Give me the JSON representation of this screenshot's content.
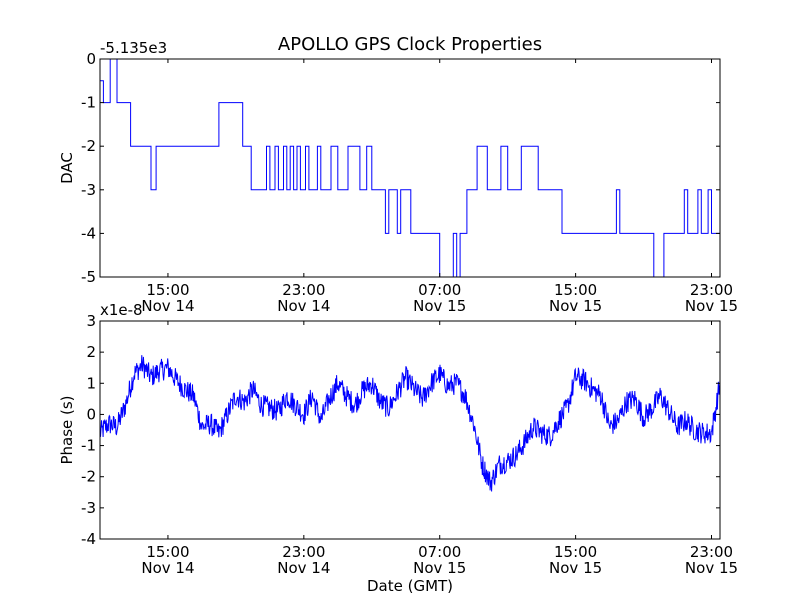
{
  "figure": {
    "title": "APOLLO GPS Clock Properties",
    "xlabel": "Date (GMT)"
  },
  "chart_data": [
    {
      "type": "line",
      "title": "APOLLO GPS Clock Properties",
      "ylabel": "DAC",
      "offset_label": "-5.135e3",
      "xlabel": "",
      "x_unit": "hours since 2012-11-14 11:00 GMT",
      "xlim": [
        0,
        36.5
      ],
      "ylim": [
        -5,
        0
      ],
      "yticks": [
        0,
        -1,
        -2,
        -3,
        -4,
        -5
      ],
      "xticks": [
        {
          "x": 4,
          "line1": "15:00",
          "line2": "Nov 14"
        },
        {
          "x": 12,
          "line1": "23:00",
          "line2": "Nov 14"
        },
        {
          "x": 20,
          "line1": "07:00",
          "line2": "Nov 15"
        },
        {
          "x": 28,
          "line1": "15:00",
          "line2": "Nov 15"
        },
        {
          "x": 36,
          "line1": "23:00",
          "line2": "Nov 15"
        }
      ],
      "grid": false,
      "line_color": "#0000ff",
      "series": [
        {
          "x": [
            0.0,
            0.2,
            0.4,
            0.6,
            0.8,
            1.0,
            1.2,
            1.8,
            2.6,
            3.0,
            3.1,
            3.3,
            3.8,
            4.5,
            6.8,
            7.0,
            8.4,
            8.6,
            8.9,
            9.6,
            9.8,
            10.0,
            10.3,
            10.5,
            10.8,
            11.0,
            11.2,
            11.4,
            11.6,
            11.8,
            12.1,
            12.3,
            12.6,
            12.8,
            13.0,
            13.4,
            13.6,
            14.0,
            14.4,
            14.6,
            15.0,
            15.3,
            15.5,
            15.7,
            16.0,
            16.2,
            16.5,
            16.8,
            17.0,
            17.2,
            17.5,
            17.7,
            18.0,
            18.3,
            18.6,
            18.9,
            19.3,
            19.6,
            20.0,
            20.6,
            20.8,
            21.0,
            21.2,
            21.4,
            21.6,
            22.0,
            22.2,
            22.6,
            22.8,
            23.0,
            23.2,
            23.6,
            24.0,
            24.4,
            24.6,
            24.8,
            25.4,
            25.8,
            26.2,
            26.6,
            27.2,
            28.0,
            29.0,
            30.0,
            30.4,
            30.6,
            31.0,
            31.2,
            31.4,
            32.2,
            32.4,
            32.6,
            33.2,
            34.0,
            34.4,
            34.6,
            35.0,
            35.2,
            35.4,
            35.8,
            36.0,
            36.2,
            36.5
          ],
          "y": [
            -0.5,
            -1,
            -1,
            0,
            0,
            -1,
            -1,
            -2,
            -2,
            -3,
            -3,
            -2,
            -2,
            -2,
            -2,
            -1,
            -2,
            -2,
            -3,
            -3,
            -2,
            -3,
            -2,
            -3,
            -2,
            -3,
            -2,
            -3,
            -2,
            -3,
            -2,
            -3,
            -3,
            -2,
            -3,
            -3,
            -2,
            -3,
            -3,
            -2,
            -2,
            -3,
            -3,
            -2,
            -3,
            -3,
            -3,
            -4,
            -3,
            -3,
            -4,
            -3,
            -3,
            -4,
            -4,
            -4,
            -4,
            -4,
            -5,
            -5,
            -4,
            -5,
            -4,
            -4,
            -3,
            -3,
            -2,
            -2,
            -3,
            -3,
            -3,
            -2,
            -3,
            -3,
            -3,
            -2,
            -2,
            -3,
            -3,
            -3,
            -4,
            -4,
            -4,
            -4,
            -3,
            -4,
            -4,
            -4,
            -4,
            -4,
            -4,
            -5,
            -4,
            -4,
            -3,
            -4,
            -4,
            -3,
            -4,
            -3,
            -4,
            -4,
            -4
          ]
        }
      ]
    },
    {
      "type": "line",
      "ylabel": "Phase (s)",
      "offset_label": "x1e-8",
      "xlabel": "Date (GMT)",
      "x_unit": "hours since 2012-11-14 11:00 GMT",
      "xlim": [
        0,
        36.5
      ],
      "ylim": [
        -4,
        3
      ],
      "yticks": [
        3,
        2,
        1,
        0,
        -1,
        -2,
        -3,
        -4
      ],
      "xticks": [
        {
          "x": 4,
          "line1": "15:00",
          "line2": "Nov 14"
        },
        {
          "x": 12,
          "line1": "23:00",
          "line2": "Nov 14"
        },
        {
          "x": 20,
          "line1": "07:00",
          "line2": "Nov 15"
        },
        {
          "x": 28,
          "line1": "15:00",
          "line2": "Nov 15"
        },
        {
          "x": 36,
          "line1": "23:00",
          "line2": "Nov 15"
        }
      ],
      "grid": false,
      "line_color": "#0000ff",
      "series": [
        {
          "x": [
            0,
            0.5,
            1.0,
            1.5,
            2.0,
            2.5,
            3.0,
            3.5,
            4.0,
            4.5,
            5.0,
            5.5,
            6.0,
            6.5,
            7.0,
            7.5,
            8.0,
            8.5,
            9.0,
            9.5,
            10.0,
            10.5,
            11.0,
            11.5,
            12.0,
            12.5,
            13.0,
            13.5,
            14.0,
            14.5,
            15.0,
            15.5,
            16.0,
            16.5,
            17.0,
            17.5,
            18.0,
            18.5,
            19.0,
            19.5,
            20.0,
            20.5,
            21.0,
            21.5,
            22.0,
            22.5,
            23.0,
            23.5,
            24.0,
            24.5,
            25.0,
            25.5,
            26.0,
            26.5,
            27.0,
            27.5,
            28.0,
            28.5,
            29.0,
            29.5,
            30.0,
            30.5,
            31.0,
            31.5,
            32.0,
            32.5,
            33.0,
            33.5,
            34.0,
            34.5,
            35.0,
            35.5,
            36.0,
            36.5
          ],
          "y": [
            -0.6,
            -0.3,
            -0.4,
            0.3,
            1.3,
            1.6,
            1.2,
            1.4,
            1.5,
            1.1,
            0.8,
            0.6,
            -0.4,
            -0.3,
            -0.6,
            0.0,
            0.6,
            0.4,
            0.8,
            0.3,
            0.2,
            0.1,
            0.6,
            0.3,
            0.0,
            0.6,
            -0.2,
            0.5,
            1.0,
            0.6,
            0.3,
            0.8,
            1.0,
            0.4,
            0.2,
            0.7,
            1.2,
            0.8,
            0.5,
            1.0,
            1.3,
            0.9,
            1.0,
            0.6,
            -0.3,
            -1.6,
            -2.2,
            -1.6,
            -1.5,
            -1.3,
            -0.9,
            -0.4,
            -0.6,
            -0.7,
            -0.2,
            0.2,
            1.2,
            1.1,
            0.8,
            0.6,
            -0.4,
            -0.2,
            0.4,
            0.5,
            -0.1,
            0.2,
            0.6,
            0.1,
            -0.4,
            -0.2,
            -0.5,
            -0.6,
            -0.6,
            1.0
          ],
          "noise_amplitude": 0.6
        }
      ]
    }
  ]
}
